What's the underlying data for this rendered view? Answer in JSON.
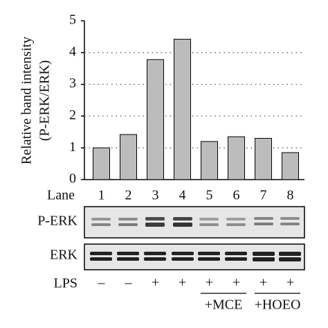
{
  "chart_data": {
    "type": "bar",
    "y_label": [
      "Relative band intensity",
      "(P-ERK/ERK)"
    ],
    "x_label": "Lane",
    "categories": [
      "1",
      "2",
      "3",
      "4",
      "5",
      "6",
      "7",
      "8"
    ],
    "values": [
      1.0,
      1.42,
      3.78,
      4.42,
      1.2,
      1.35,
      1.3,
      0.85
    ],
    "color": "#bcbcbc",
    "ylim": [
      0,
      5
    ],
    "yticks": [
      0,
      1,
      2,
      3,
      4,
      5
    ],
    "grid": true
  },
  "blots": [
    "P-ERK",
    "ERK"
  ],
  "treatment": {
    "label": "LPS",
    "signs": [
      "–",
      "–",
      "+",
      "+",
      "+",
      "+",
      "+",
      "+"
    ],
    "groups": [
      "+MCE",
      "+HOEO"
    ]
  }
}
